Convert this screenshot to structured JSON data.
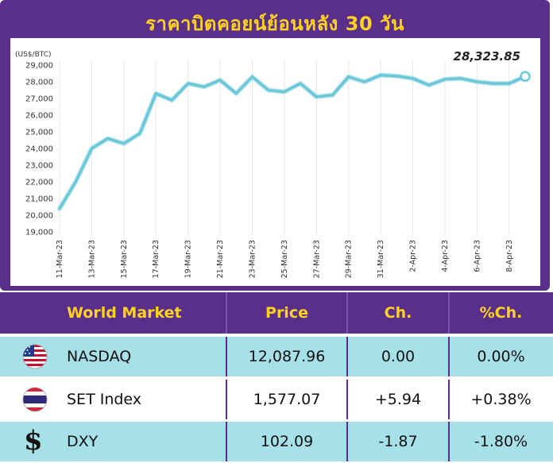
{
  "chart_data": {
    "type": "line",
    "title": "ราคาบิตคอยน์ย้อนหลัง 30 วัน",
    "ylabel": "(US$/BTC)",
    "ylim": [
      19000,
      29000
    ],
    "yticks": [
      "19,000",
      "20,000",
      "21,000",
      "22,000",
      "23,000",
      "24,000",
      "25,000",
      "26,000",
      "27,000",
      "28,000",
      "29,000"
    ],
    "ytick_values": [
      19000,
      20000,
      21000,
      22000,
      23000,
      24000,
      25000,
      26000,
      27000,
      28000,
      29000
    ],
    "xtick_labels": [
      "11-Mar-23",
      "13-Mar-23",
      "15-Mar-23",
      "17-Mar-23",
      "19-Mar-23",
      "21-Mar-23",
      "23-Mar-23",
      "25-Mar-23",
      "27-Mar-23",
      "29-Mar-23",
      "31-Mar-23",
      "2-Apr-23",
      "4-Apr-23",
      "6-Apr-23",
      "8-Apr-23"
    ],
    "x": [
      "11-Mar-23",
      "12-Mar-23",
      "13-Mar-23",
      "14-Mar-23",
      "15-Mar-23",
      "16-Mar-23",
      "17-Mar-23",
      "18-Mar-23",
      "19-Mar-23",
      "20-Mar-23",
      "21-Mar-23",
      "22-Mar-23",
      "23-Mar-23",
      "24-Mar-23",
      "25-Mar-23",
      "26-Mar-23",
      "27-Mar-23",
      "28-Mar-23",
      "29-Mar-23",
      "30-Mar-23",
      "31-Mar-23",
      "1-Apr-23",
      "2-Apr-23",
      "3-Apr-23",
      "4-Apr-23",
      "5-Apr-23",
      "6-Apr-23",
      "7-Apr-23",
      "8-Apr-23",
      "9-Apr-23"
    ],
    "series": [
      {
        "values": [
          20400,
          22000,
          24000,
          24600,
          24300,
          24900,
          27300,
          26900,
          27900,
          27700,
          28100,
          27300,
          28300,
          27500,
          27400,
          27900,
          27100,
          27200,
          28300,
          28000,
          28400,
          28350,
          28200,
          27800,
          28150,
          28200,
          28000,
          27900,
          27900,
          28323.85
        ]
      }
    ],
    "last_value_label": "28,323.85",
    "grid": false,
    "colors": {
      "line": "#6cc7d9",
      "frame": "#5a2f8c",
      "title": "#ffd21f"
    }
  },
  "table": {
    "headers": {
      "name": "World Market",
      "price": "Price",
      "ch": "Ch.",
      "pct": "%Ch."
    },
    "rows": [
      {
        "icon": "us-flag-icon",
        "name": "NASDAQ",
        "price": "12,087.96",
        "ch": "0.00",
        "pct": "0.00%"
      },
      {
        "icon": "thai-flag-icon",
        "name": "SET Index",
        "price": "1,577.07",
        "ch": "+5.94",
        "pct": "+0.38%"
      },
      {
        "icon": "dollar-icon",
        "dollar_symbol": "$",
        "name": "DXY",
        "price": "102.09",
        "ch": "-1.87",
        "pct": "-1.80%"
      }
    ]
  }
}
